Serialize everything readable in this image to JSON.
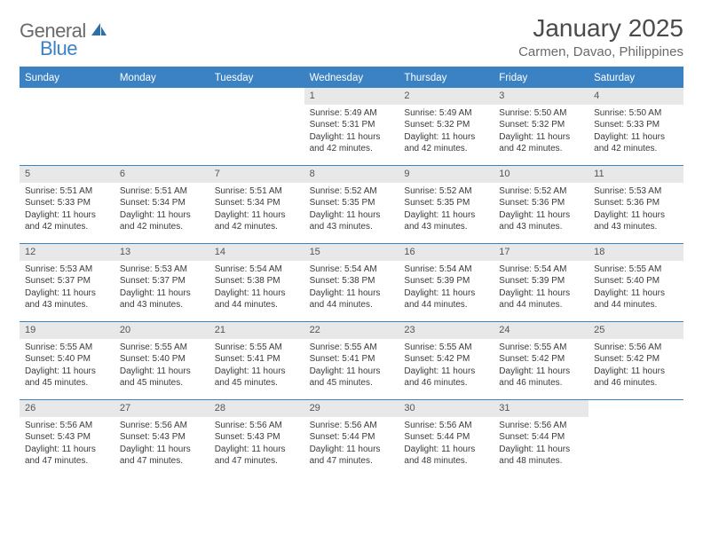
{
  "logo": {
    "text1": "General",
    "text2": "Blue",
    "icon_color": "#2f6fa8"
  },
  "title": "January 2025",
  "location": "Carmen, Davao, Philippines",
  "colors": {
    "header_bg": "#3b82c4",
    "header_text": "#ffffff",
    "daynum_bg": "#e8e8e8",
    "border": "#3b82c4",
    "body_text": "#3a3a3a"
  },
  "day_headers": [
    "Sunday",
    "Monday",
    "Tuesday",
    "Wednesday",
    "Thursday",
    "Friday",
    "Saturday"
  ],
  "first_weekday_index": 3,
  "days": [
    {
      "n": 1,
      "sunrise": "5:49 AM",
      "sunset": "5:31 PM",
      "day_h": 11,
      "day_m": 42
    },
    {
      "n": 2,
      "sunrise": "5:49 AM",
      "sunset": "5:32 PM",
      "day_h": 11,
      "day_m": 42
    },
    {
      "n": 3,
      "sunrise": "5:50 AM",
      "sunset": "5:32 PM",
      "day_h": 11,
      "day_m": 42
    },
    {
      "n": 4,
      "sunrise": "5:50 AM",
      "sunset": "5:33 PM",
      "day_h": 11,
      "day_m": 42
    },
    {
      "n": 5,
      "sunrise": "5:51 AM",
      "sunset": "5:33 PM",
      "day_h": 11,
      "day_m": 42
    },
    {
      "n": 6,
      "sunrise": "5:51 AM",
      "sunset": "5:34 PM",
      "day_h": 11,
      "day_m": 42
    },
    {
      "n": 7,
      "sunrise": "5:51 AM",
      "sunset": "5:34 PM",
      "day_h": 11,
      "day_m": 42
    },
    {
      "n": 8,
      "sunrise": "5:52 AM",
      "sunset": "5:35 PM",
      "day_h": 11,
      "day_m": 43
    },
    {
      "n": 9,
      "sunrise": "5:52 AM",
      "sunset": "5:35 PM",
      "day_h": 11,
      "day_m": 43
    },
    {
      "n": 10,
      "sunrise": "5:52 AM",
      "sunset": "5:36 PM",
      "day_h": 11,
      "day_m": 43
    },
    {
      "n": 11,
      "sunrise": "5:53 AM",
      "sunset": "5:36 PM",
      "day_h": 11,
      "day_m": 43
    },
    {
      "n": 12,
      "sunrise": "5:53 AM",
      "sunset": "5:37 PM",
      "day_h": 11,
      "day_m": 43
    },
    {
      "n": 13,
      "sunrise": "5:53 AM",
      "sunset": "5:37 PM",
      "day_h": 11,
      "day_m": 43
    },
    {
      "n": 14,
      "sunrise": "5:54 AM",
      "sunset": "5:38 PM",
      "day_h": 11,
      "day_m": 44
    },
    {
      "n": 15,
      "sunrise": "5:54 AM",
      "sunset": "5:38 PM",
      "day_h": 11,
      "day_m": 44
    },
    {
      "n": 16,
      "sunrise": "5:54 AM",
      "sunset": "5:39 PM",
      "day_h": 11,
      "day_m": 44
    },
    {
      "n": 17,
      "sunrise": "5:54 AM",
      "sunset": "5:39 PM",
      "day_h": 11,
      "day_m": 44
    },
    {
      "n": 18,
      "sunrise": "5:55 AM",
      "sunset": "5:40 PM",
      "day_h": 11,
      "day_m": 44
    },
    {
      "n": 19,
      "sunrise": "5:55 AM",
      "sunset": "5:40 PM",
      "day_h": 11,
      "day_m": 45
    },
    {
      "n": 20,
      "sunrise": "5:55 AM",
      "sunset": "5:40 PM",
      "day_h": 11,
      "day_m": 45
    },
    {
      "n": 21,
      "sunrise": "5:55 AM",
      "sunset": "5:41 PM",
      "day_h": 11,
      "day_m": 45
    },
    {
      "n": 22,
      "sunrise": "5:55 AM",
      "sunset": "5:41 PM",
      "day_h": 11,
      "day_m": 45
    },
    {
      "n": 23,
      "sunrise": "5:55 AM",
      "sunset": "5:42 PM",
      "day_h": 11,
      "day_m": 46
    },
    {
      "n": 24,
      "sunrise": "5:55 AM",
      "sunset": "5:42 PM",
      "day_h": 11,
      "day_m": 46
    },
    {
      "n": 25,
      "sunrise": "5:56 AM",
      "sunset": "5:42 PM",
      "day_h": 11,
      "day_m": 46
    },
    {
      "n": 26,
      "sunrise": "5:56 AM",
      "sunset": "5:43 PM",
      "day_h": 11,
      "day_m": 47
    },
    {
      "n": 27,
      "sunrise": "5:56 AM",
      "sunset": "5:43 PM",
      "day_h": 11,
      "day_m": 47
    },
    {
      "n": 28,
      "sunrise": "5:56 AM",
      "sunset": "5:43 PM",
      "day_h": 11,
      "day_m": 47
    },
    {
      "n": 29,
      "sunrise": "5:56 AM",
      "sunset": "5:44 PM",
      "day_h": 11,
      "day_m": 47
    },
    {
      "n": 30,
      "sunrise": "5:56 AM",
      "sunset": "5:44 PM",
      "day_h": 11,
      "day_m": 48
    },
    {
      "n": 31,
      "sunrise": "5:56 AM",
      "sunset": "5:44 PM",
      "day_h": 11,
      "day_m": 48
    }
  ],
  "labels": {
    "sunrise": "Sunrise:",
    "sunset": "Sunset:",
    "daylight_prefix": "Daylight:",
    "hours_word": "hours",
    "and_word": "and",
    "minutes_word": "minutes."
  }
}
